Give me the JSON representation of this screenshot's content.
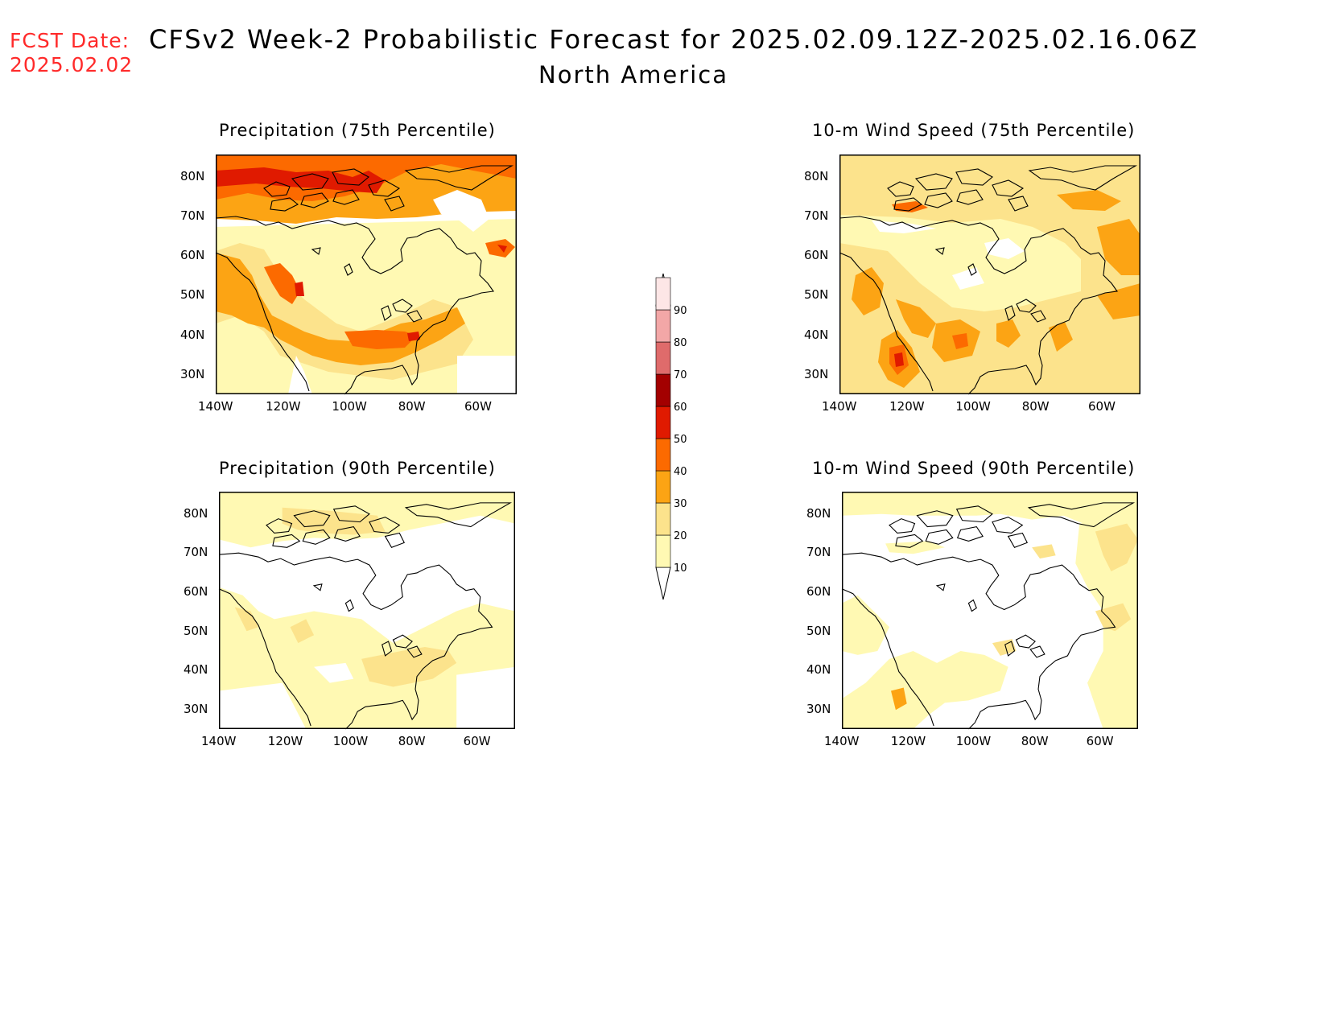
{
  "fcst_date": {
    "label": "FCST Date:",
    "value": "2025.02.02"
  },
  "title": "CFSv2 Week-2 Probabilistic Forecast for 2025.02.09.12Z-2025.02.16.06Z",
  "region": "North America",
  "panels": [
    {
      "id": "precip75",
      "title": "Precipitation (75th Percentile)"
    },
    {
      "id": "wind75",
      "title": "10-m Wind Speed (75th Percentile)"
    },
    {
      "id": "precip90",
      "title": "Precipitation (90th Percentile)"
    },
    {
      "id": "wind90",
      "title": "10-m Wind Speed (90th Percentile)"
    }
  ],
  "axes": {
    "lat_ticks": [
      "80N",
      "70N",
      "60N",
      "50N",
      "40N",
      "30N"
    ],
    "lon_ticks": [
      "140W",
      "120W",
      "100W",
      "80W",
      "60W"
    ]
  },
  "colorbar": {
    "levels": [
      "10",
      "20",
      "30",
      "40",
      "50",
      "60",
      "70",
      "80",
      "90"
    ],
    "colors": [
      "#fff9b3",
      "#fce38c",
      "#fca414",
      "#fc6a00",
      "#e01a00",
      "#a30000",
      "#df6b6b",
      "#f3a7a7",
      "#fde6e6"
    ]
  }
}
